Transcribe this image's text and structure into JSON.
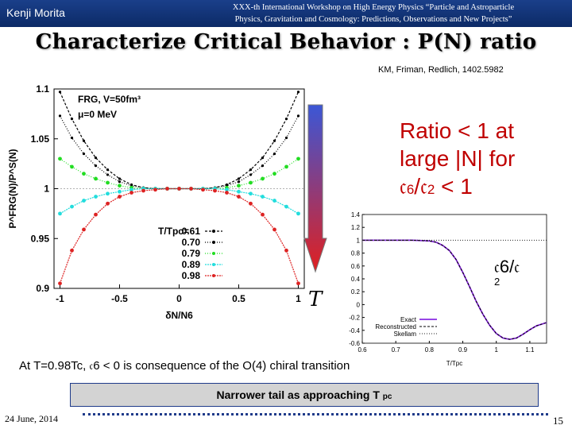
{
  "header": {
    "author": "Kenji Morita",
    "conference_line1": "XXX-th International Workshop on High Energy Physics “Particle and Astroparticle",
    "conference_line2": "Physics, Gravitation and Cosmology: Predictions, Observations and New Projects”"
  },
  "slide": {
    "title": "Characterize Critical Behavior : P(N) ratio",
    "citation": "KM, Friman, Redlich, 1402.5982",
    "ratio_line1": "Ratio < 1 at",
    "ratio_line2": "large |N|  for",
    "ratio_c6": "𝔠",
    "ratio_sub6": "6",
    "ratio_slash": "/𝔠",
    "ratio_sub2": "2",
    "ratio_lt1": " < 1",
    "temperature_arrow_label": "T",
    "c_label": "𝔠6/𝔠",
    "c_label_sub": "2",
    "statement": "At T=0.98Tc, 𝔠6 < 0 is consequence of the O(4) chiral transition",
    "box_text": "Narrower tail as approaching T",
    "box_sub": "pc",
    "footer_date": "24 June, 2014",
    "page_number": "15"
  },
  "colors": {
    "header_bg": "#0c2a66",
    "ratio_text": "#c00000",
    "arrow_top": "#3b57d6",
    "arrow_bottom": "#e02020",
    "series_colors": [
      "#000000",
      "#000000",
      "#22dd22",
      "#22dddd",
      "#dd2222"
    ]
  },
  "chart_data": [
    {
      "type": "scatter",
      "title": "",
      "annotations": [
        "FRG, V=50fm³",
        "μ=0 MeV"
      ],
      "xlabel": "δN/N6",
      "ylabel": "P^FRG(N)/P^S(N)",
      "xlim": [
        -1.05,
        1.05
      ],
      "ylim": [
        0.9,
        1.1
      ],
      "x_ticks": [
        -1,
        -0.5,
        0,
        0.5,
        1
      ],
      "x_tick_labels": [
        "-1",
        "-0.5",
        "0",
        "0.5",
        "1"
      ],
      "y_ticks": [
        0.9,
        0.95,
        1,
        1.05,
        1.1
      ],
      "y_tick_labels": [
        "0.9",
        "0.95",
        "1",
        "1.05",
        "1.1"
      ],
      "legend_title": "T/Tpc=",
      "legend_position": "lower-right",
      "x": [
        -1.0,
        -0.9,
        -0.8,
        -0.7,
        -0.6,
        -0.5,
        -0.4,
        -0.3,
        -0.2,
        -0.1,
        0.0,
        0.1,
        0.2,
        0.3,
        0.4,
        0.5,
        0.6,
        0.7,
        0.8,
        0.9,
        1.0
      ],
      "series": [
        {
          "name": "0.61",
          "values": [
            1.097,
            1.07,
            1.048,
            1.031,
            1.019,
            1.01,
            1.004,
            1.001,
            1.0,
            1.0,
            1.0,
            1.0,
            1.0,
            1.001,
            1.004,
            1.01,
            1.019,
            1.031,
            1.048,
            1.07,
            1.097
          ]
        },
        {
          "name": "0.70",
          "values": [
            1.073,
            1.051,
            1.035,
            1.023,
            1.014,
            1.007,
            1.003,
            1.001,
            1.0,
            1.0,
            1.0,
            1.0,
            1.0,
            1.001,
            1.003,
            1.007,
            1.014,
            1.023,
            1.035,
            1.051,
            1.073
          ]
        },
        {
          "name": "0.79",
          "values": [
            1.03,
            1.022,
            1.015,
            1.01,
            1.006,
            1.003,
            1.001,
            1.0,
            1.0,
            1.0,
            1.0,
            1.0,
            1.0,
            1.0,
            1.001,
            1.003,
            1.006,
            1.01,
            1.015,
            1.022,
            1.03
          ]
        },
        {
          "name": "0.89",
          "values": [
            0.975,
            0.982,
            0.988,
            0.992,
            0.995,
            0.997,
            0.999,
            1.0,
            1.0,
            1.0,
            1.0,
            1.0,
            1.0,
            1.0,
            0.999,
            0.997,
            0.995,
            0.992,
            0.988,
            0.982,
            0.975
          ]
        },
        {
          "name": "0.98",
          "values": [
            0.905,
            0.938,
            0.959,
            0.974,
            0.985,
            0.992,
            0.996,
            0.998,
            0.999,
            1.0,
            1.0,
            1.0,
            0.999,
            0.998,
            0.996,
            0.992,
            0.985,
            0.974,
            0.959,
            0.938,
            0.905
          ]
        }
      ]
    },
    {
      "type": "line",
      "title": "",
      "xlabel": "T/Tpc",
      "ylabel": "",
      "xlim": [
        0.6,
        1.15
      ],
      "ylim": [
        -0.6,
        1.4
      ],
      "x_ticks": [
        0.6,
        0.7,
        0.8,
        0.9,
        1.0,
        1.1
      ],
      "x_tick_labels": [
        "0.6",
        "0.7",
        "0.8",
        "0.9",
        "1",
        "1.1"
      ],
      "y_ticks": [
        -0.6,
        -0.4,
        -0.2,
        0,
        0.2,
        0.4,
        0.6,
        0.8,
        1.0,
        1.2,
        1.4
      ],
      "y_tick_labels": [
        "-0.6",
        "-0.4",
        "-0.2",
        "0",
        "0.2",
        "0.4",
        "0.6",
        "0.8",
        "1",
        "1.2",
        "1.4"
      ],
      "legend": [
        "Exact",
        "Reconstructed",
        "Skellam"
      ],
      "legend_position": "lower-left",
      "x": [
        0.6,
        0.65,
        0.7,
        0.75,
        0.8,
        0.82,
        0.84,
        0.86,
        0.88,
        0.9,
        0.92,
        0.94,
        0.96,
        0.98,
        1.0,
        1.02,
        1.04,
        1.06,
        1.08,
        1.1,
        1.12,
        1.15
      ],
      "series": [
        {
          "name": "Exact",
          "values": [
            1.0,
            1.0,
            1.0,
            1.0,
            0.99,
            0.97,
            0.92,
            0.84,
            0.7,
            0.5,
            0.28,
            0.05,
            -0.15,
            -0.32,
            -0.45,
            -0.52,
            -0.54,
            -0.52,
            -0.46,
            -0.39,
            -0.33,
            -0.28
          ]
        },
        {
          "name": "Reconstructed",
          "values": [
            1.0,
            1.0,
            1.0,
            1.0,
            0.99,
            0.97,
            0.92,
            0.84,
            0.7,
            0.5,
            0.28,
            0.05,
            -0.15,
            -0.32,
            -0.45,
            -0.52,
            -0.54,
            -0.52,
            -0.46,
            -0.39,
            -0.33,
            -0.28
          ]
        },
        {
          "name": "Skellam",
          "values": [
            1.0,
            1.0,
            1.0,
            1.0,
            1.0,
            1.0,
            1.0,
            1.0,
            1.0,
            1.0,
            1.0,
            1.0,
            1.0,
            1.0,
            1.0,
            1.0,
            1.0,
            1.0,
            1.0,
            1.0,
            1.0,
            1.0
          ]
        }
      ]
    }
  ]
}
